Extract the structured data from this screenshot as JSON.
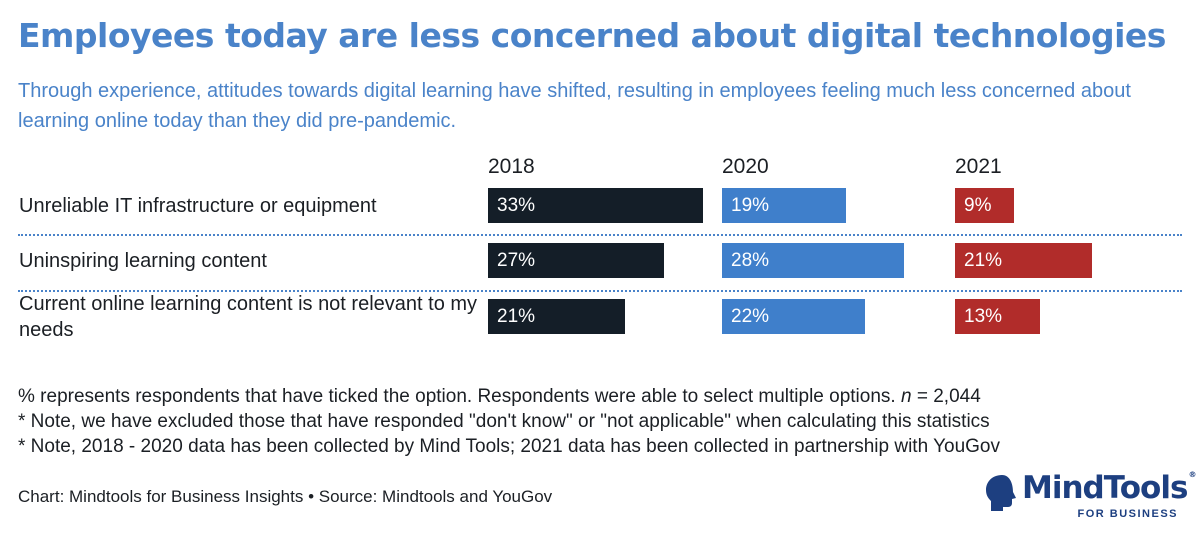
{
  "title": "Employees today are less concerned about digital technologies",
  "subtitle": "Through experience, attitudes towards digital learning have shifted, resulting in employees feeling much less concerned about learning online today than they did pre-pandemic.",
  "chart_data": {
    "type": "bar",
    "orientation": "horizontal",
    "layout": "small-multiples by year",
    "categories": [
      "Unreliable IT infrastructure or equipment",
      "Uninspiring learning content",
      "Current online learning content is not relevant to my needs"
    ],
    "series": [
      {
        "name": "2018",
        "color": "#141e28",
        "values": [
          33,
          27,
          21
        ],
        "labels": [
          "33%",
          "27%",
          "21%"
        ]
      },
      {
        "name": "2020",
        "color": "#3f7fcb",
        "values": [
          19,
          28,
          22
        ],
        "labels": [
          "19%",
          "28%",
          "22%"
        ]
      },
      {
        "name": "2021",
        "color": "#b12c2a",
        "values": [
          9,
          21,
          13
        ],
        "labels": [
          "9%",
          "21%",
          "13%"
        ]
      }
    ],
    "unit": "%",
    "grid": false,
    "legend": "column headers"
  },
  "notes": [
    "% represents respondents that have ticked the option. Respondents were able to select multiple options.",
    "* Note, we have excluded those that have responded \"don't know\" or \"not applicable\" when calculating this statistics",
    "* Note, 2018 - 2020 data has been collected by Mind Tools; 2021 data has been collected in partnership with YouGov"
  ],
  "sample": {
    "label": "n",
    "value": "= 2,044"
  },
  "source": "Chart: Mindtools for Business Insights • Source: Mindtools and YouGov",
  "logo": {
    "word": "MindTools",
    "reg": "®",
    "sub": "FOR BUSINESS",
    "color": "#1d3f80"
  }
}
